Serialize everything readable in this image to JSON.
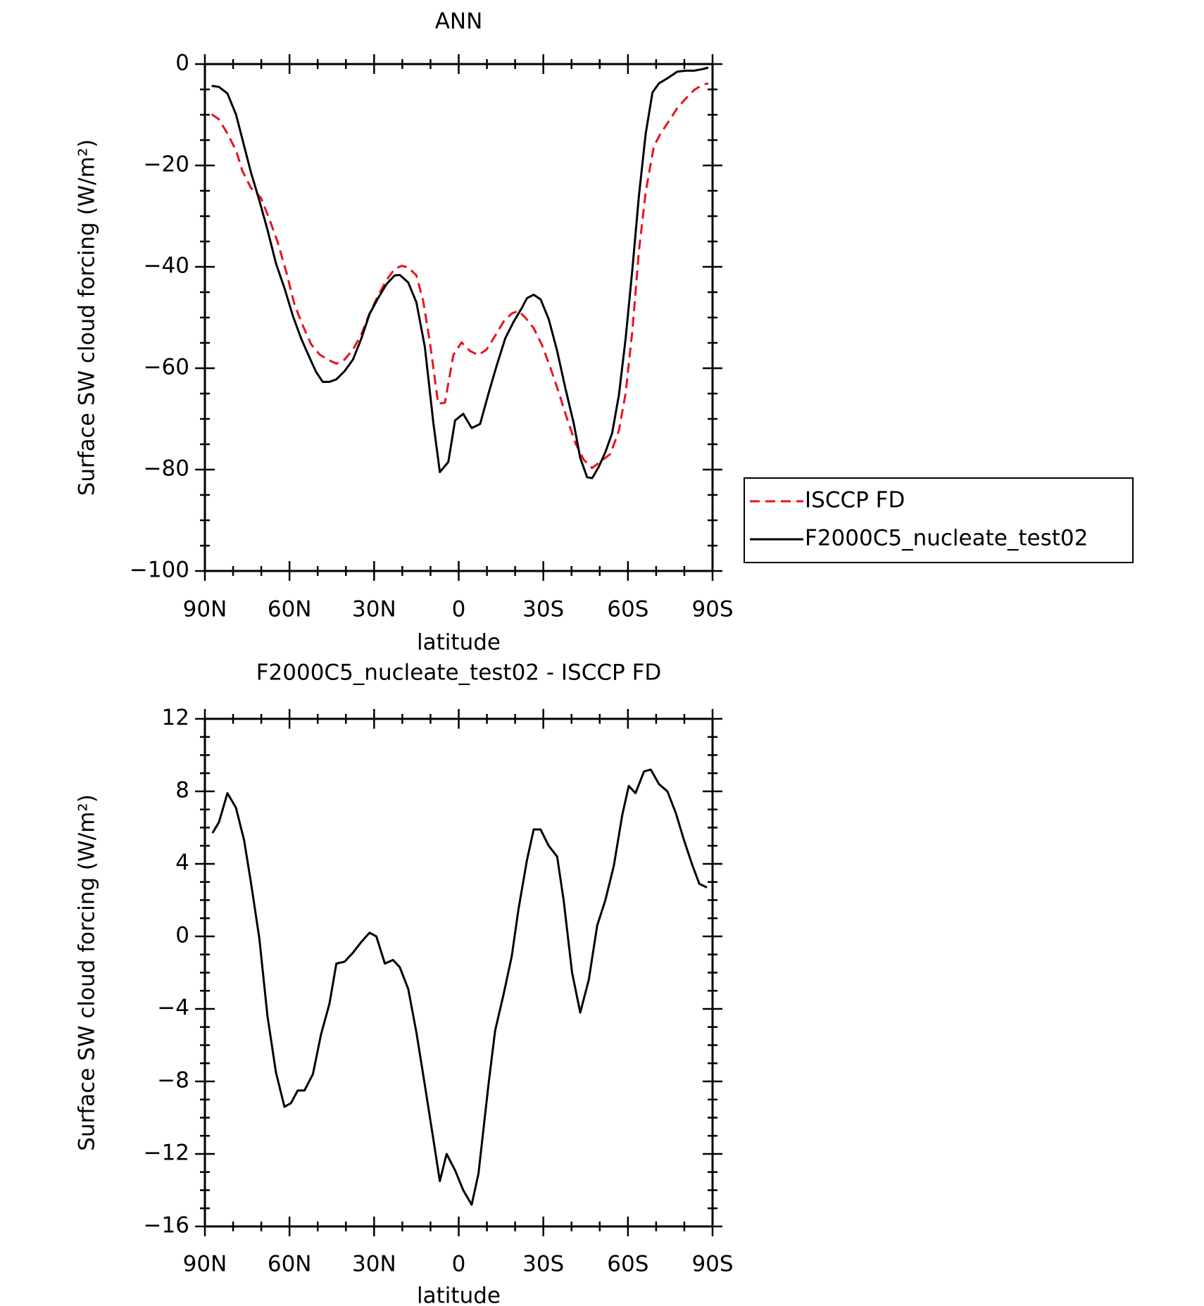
{
  "chart_data": [
    {
      "type": "line",
      "title": "ANN",
      "xlabel": "latitude",
      "ylabel": "Surface SW cloud forcing (W/m²)",
      "xlim": [
        90,
        -90
      ],
      "xticks": [
        {
          "value": 90,
          "label": "90N"
        },
        {
          "value": 60,
          "label": "60N"
        },
        {
          "value": 30,
          "label": "30N"
        },
        0,
        {
          "value": -30,
          "label": "30S"
        },
        {
          "value": -60,
          "label": "60S"
        },
        {
          "value": -90,
          "label": "90S"
        }
      ],
      "xminorticks": [
        80,
        70,
        50,
        40,
        20,
        10,
        -10,
        -20,
        -40,
        -50,
        -70,
        -80
      ],
      "ylim": [
        -100,
        0
      ],
      "yticks": [
        -100,
        -80,
        -60,
        -40,
        -20,
        0
      ],
      "yminorticks": [
        -95,
        -90,
        -85,
        -75,
        -70,
        -65,
        -55,
        -50,
        -45,
        -35,
        -30,
        -25,
        -15,
        -10,
        -5
      ],
      "legend": "right",
      "series": [
        {
          "name": "ISCCP FD",
          "color": "#e8141a",
          "dash": true,
          "x": [
            87.6,
            85.0,
            82.0,
            79.0,
            76.7,
            73.7,
            70.1,
            67.2,
            64.2,
            61.2,
            58.2,
            55.2,
            52.3,
            49.3,
            46.4,
            43.4,
            40.5,
            37.5,
            34.5,
            31.6,
            28.6,
            25.6,
            22.7,
            20.3,
            17.9,
            15.0,
            12.6,
            10.2,
            7.3,
            4.9,
            1.9,
            -1.0,
            -4.0,
            -7.0,
            -9.9,
            -12.9,
            -15.9,
            -18.8,
            -21.2,
            -23.6,
            -26.6,
            -29.5,
            -32.5,
            -35.5,
            -38.5,
            -41.4,
            -44.4,
            -47.3,
            -50.3,
            -53.8,
            -56.8,
            -59.2,
            -61.6,
            -63.9,
            -66.3,
            -69.2,
            -71.6,
            -74.6,
            -77.5,
            -80.5,
            -83.5,
            -86.4,
            -88.5
          ],
          "values": [
            -9.9,
            -10.9,
            -13.7,
            -17.0,
            -21.1,
            -24.4,
            -26.4,
            -30.5,
            -35.1,
            -40.9,
            -47.5,
            -51.7,
            -55.3,
            -57.3,
            -58.3,
            -59.1,
            -58.3,
            -56.3,
            -53.3,
            -49.2,
            -45.7,
            -42.6,
            -40.4,
            -39.8,
            -40.1,
            -41.7,
            -46.7,
            -54.9,
            -67.0,
            -66.8,
            -57.4,
            -54.9,
            -56.6,
            -57.4,
            -56.3,
            -53.6,
            -50.8,
            -49.2,
            -48.7,
            -50.0,
            -52.1,
            -55.4,
            -59.9,
            -64.8,
            -70.1,
            -74.8,
            -78.1,
            -79.7,
            -78.4,
            -76.9,
            -72.3,
            -64.9,
            -52.5,
            -36.8,
            -25.2,
            -16.2,
            -13.7,
            -11.2,
            -8.7,
            -6.8,
            -5.1,
            -4.1,
            -3.8
          ]
        },
        {
          "name": "F2000C5_nucleate_test02",
          "color": "#000000",
          "dash": false,
          "x": [
            87.6,
            85.0,
            82.0,
            79.0,
            73.7,
            70.7,
            67.8,
            64.8,
            61.8,
            58.8,
            55.9,
            52.9,
            50.6,
            48.2,
            45.8,
            43.4,
            40.5,
            37.5,
            34.5,
            31.6,
            28.6,
            25.6,
            22.7,
            20.9,
            17.9,
            15.0,
            12.0,
            9.0,
            6.7,
            3.7,
            1.3,
            -1.6,
            -4.6,
            -7.6,
            -10.6,
            -13.5,
            -16.5,
            -19.5,
            -22.5,
            -24.2,
            -26.6,
            -29.0,
            -31.9,
            -34.9,
            -37.8,
            -40.8,
            -43.1,
            -45.5,
            -47.3,
            -49.7,
            -52.1,
            -54.4,
            -56.8,
            -59.2,
            -61.6,
            -63.9,
            -66.3,
            -68.7,
            -71.0,
            -74.0,
            -77.5,
            -80.5,
            -83.5,
            -86.4,
            -88.5
          ],
          "values": [
            -4.3,
            -4.5,
            -5.8,
            -9.9,
            -21.3,
            -26.9,
            -32.7,
            -39.3,
            -44.2,
            -49.7,
            -54.1,
            -57.9,
            -60.7,
            -62.7,
            -62.7,
            -62.2,
            -60.6,
            -58.3,
            -54.1,
            -49.3,
            -46.2,
            -43.4,
            -41.7,
            -41.6,
            -43.1,
            -47.0,
            -55.8,
            -70.8,
            -80.5,
            -78.5,
            -70.3,
            -69.0,
            -71.8,
            -71.0,
            -64.9,
            -59.4,
            -54.1,
            -50.8,
            -48.0,
            -46.2,
            -45.5,
            -46.4,
            -50.3,
            -56.6,
            -63.9,
            -70.9,
            -77.7,
            -81.5,
            -81.7,
            -79.4,
            -76.4,
            -72.8,
            -65.3,
            -54.1,
            -40.4,
            -25.9,
            -13.7,
            -5.6,
            -3.8,
            -2.8,
            -1.5,
            -1.3,
            -1.3,
            -1.0,
            -0.7
          ]
        }
      ]
    },
    {
      "type": "line",
      "title": "F2000C5_nucleate_test02 - ISCCP FD",
      "xlabel": "latitude",
      "ylabel": "Surface SW cloud forcing (W/m²)",
      "xlim": [
        90,
        -90
      ],
      "xticks": [
        {
          "value": 90,
          "label": "90N"
        },
        {
          "value": 60,
          "label": "60N"
        },
        {
          "value": 30,
          "label": "30N"
        },
        0,
        {
          "value": -30,
          "label": "30S"
        },
        {
          "value": -60,
          "label": "60S"
        },
        {
          "value": -90,
          "label": "90S"
        }
      ],
      "xminorticks": [
        80,
        70,
        50,
        40,
        20,
        10,
        -10,
        -20,
        -40,
        -50,
        -70,
        -80
      ],
      "ylim": [
        -16,
        12
      ],
      "yticks": [
        -16,
        -12,
        -8,
        -4,
        0,
        4,
        8,
        12
      ],
      "yminorticks": [
        -15,
        -14,
        -13,
        -11,
        -10,
        -9,
        -7,
        -6,
        -5,
        -3,
        -2,
        -1,
        1,
        2,
        3,
        5,
        6,
        7,
        9,
        10,
        11
      ],
      "series": [
        {
          "color": "#000000",
          "dash": false,
          "x": [
            87.3,
            85.0,
            82.0,
            79.0,
            76.1,
            73.7,
            70.7,
            67.8,
            64.8,
            61.8,
            59.5,
            57.1,
            54.7,
            51.7,
            48.8,
            45.8,
            43.4,
            40.5,
            37.5,
            34.5,
            31.6,
            29.2,
            26.2,
            23.3,
            20.9,
            17.9,
            15.0,
            12.0,
            9.0,
            6.7,
            4.3,
            1.3,
            -1.6,
            -4.6,
            -7.0,
            -10.6,
            -12.9,
            -15.9,
            -18.8,
            -21.2,
            -24.2,
            -26.6,
            -29.0,
            -31.9,
            -34.9,
            -37.2,
            -40.2,
            -43.1,
            -46.1,
            -49.1,
            -52.0,
            -55.0,
            -58.0,
            -60.3,
            -62.7,
            -65.7,
            -68.1,
            -71.0,
            -74.0,
            -77.0,
            -79.9,
            -82.9,
            -85.3,
            -88.0
          ],
          "values": [
            5.7,
            6.3,
            7.9,
            7.1,
            5.3,
            3.0,
            -0.1,
            -4.4,
            -7.5,
            -9.4,
            -9.2,
            -8.5,
            -8.5,
            -7.6,
            -5.4,
            -3.7,
            -1.5,
            -1.4,
            -0.9,
            -0.3,
            0.2,
            0.0,
            -1.5,
            -1.3,
            -1.7,
            -2.9,
            -5.3,
            -8.2,
            -11.2,
            -13.5,
            -12.0,
            -12.9,
            -14.0,
            -14.8,
            -13.1,
            -8.1,
            -5.2,
            -3.2,
            -1.1,
            1.5,
            4.2,
            5.9,
            5.9,
            5.0,
            4.4,
            2.0,
            -2.0,
            -4.2,
            -2.4,
            0.6,
            2.0,
            3.9,
            6.7,
            8.3,
            7.9,
            9.1,
            9.2,
            8.4,
            8.0,
            6.8,
            5.3,
            3.9,
            2.9,
            2.7
          ]
        }
      ]
    }
  ]
}
